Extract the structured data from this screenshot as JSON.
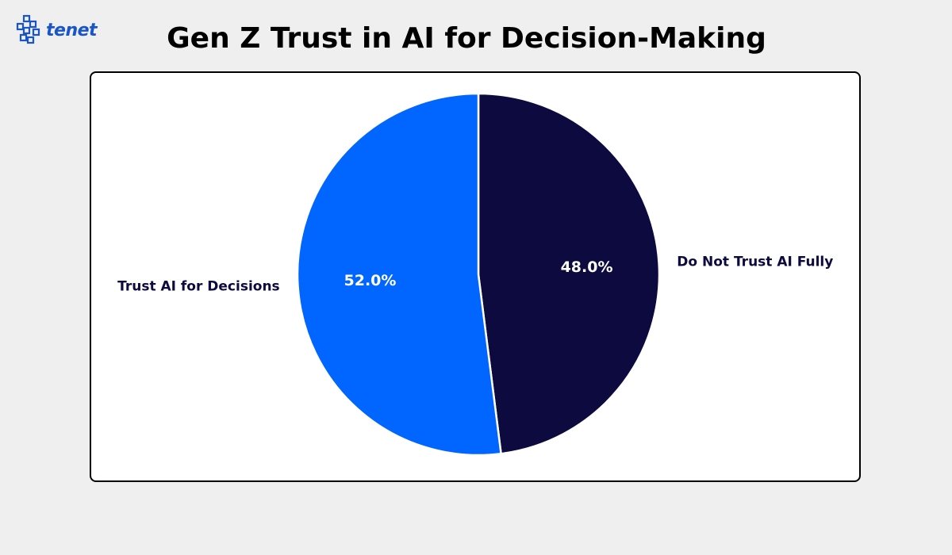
{
  "brand": {
    "logo_text": "tenet",
    "logo_icon": "tenet-logo-icon",
    "color": "#1a55c8"
  },
  "chart_data": {
    "type": "pie",
    "title": "Gen Z Trust in AI for Decision-Making",
    "categories": [
      "Do Not Trust AI Fully",
      "Trust AI for Decisions"
    ],
    "values": [
      48.0,
      52.0
    ],
    "value_labels": [
      "48.0%",
      "52.0%"
    ],
    "colors": [
      "#0c0a3e",
      "#0066ff"
    ],
    "start_angle": 90,
    "direction": "clockwise"
  }
}
